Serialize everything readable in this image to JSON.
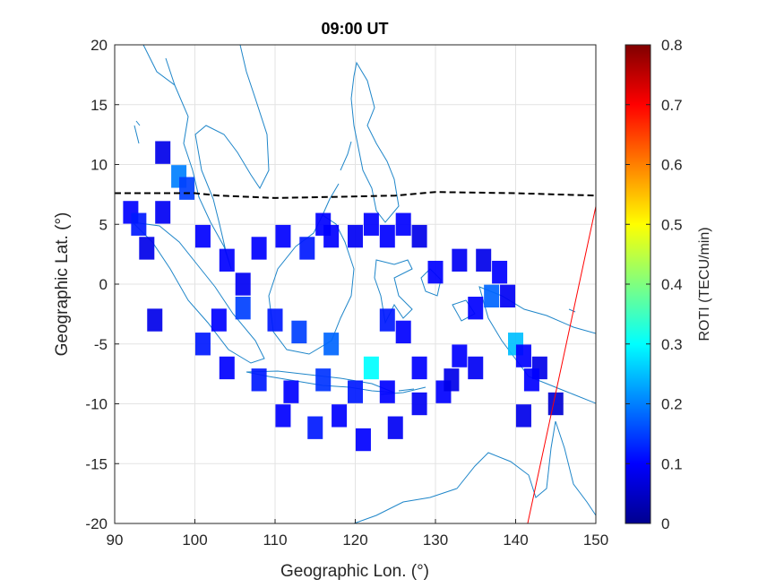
{
  "chart_data": {
    "type": "heatmap",
    "title": "09:00 UT",
    "xlabel": "Geographic Lon. (°)",
    "ylabel": "Geographic Lat. (°)",
    "xlim": [
      90,
      150
    ],
    "ylim": [
      -20,
      20
    ],
    "xticks": [
      "90",
      "100",
      "110",
      "120",
      "130",
      "140",
      "150"
    ],
    "yticks": [
      "20",
      "15",
      "10",
      "5",
      "0",
      "-5",
      "-10",
      "-15",
      "-20"
    ],
    "grid": true,
    "colorbar": {
      "label": "ROTI (TECU/min)",
      "range": [
        0,
        0.8
      ],
      "ticks": [
        "0.8",
        "0.7",
        "0.6",
        "0.5",
        "0.4",
        "0.3",
        "0.2",
        "0.1",
        "0"
      ],
      "colormap": "jet"
    },
    "cells_approx": [
      {
        "lon": 96,
        "lat": 11,
        "roti": 0.08
      },
      {
        "lon": 98,
        "lat": 9,
        "roti": 0.2
      },
      {
        "lon": 99,
        "lat": 8,
        "roti": 0.15
      },
      {
        "lon": 92,
        "lat": 6,
        "roti": 0.1
      },
      {
        "lon": 93,
        "lat": 5,
        "roti": 0.12
      },
      {
        "lon": 94,
        "lat": 3,
        "roti": 0.08
      },
      {
        "lon": 96,
        "lat": 6,
        "roti": 0.09
      },
      {
        "lon": 101,
        "lat": 4,
        "roti": 0.1
      },
      {
        "lon": 104,
        "lat": 2,
        "roti": 0.1
      },
      {
        "lon": 106,
        "lat": 0,
        "roti": 0.09
      },
      {
        "lon": 108,
        "lat": 3,
        "roti": 0.1
      },
      {
        "lon": 111,
        "lat": 4,
        "roti": 0.1
      },
      {
        "lon": 114,
        "lat": 3,
        "roti": 0.12
      },
      {
        "lon": 116,
        "lat": 5,
        "roti": 0.1
      },
      {
        "lon": 117,
        "lat": 4,
        "roti": 0.1
      },
      {
        "lon": 120,
        "lat": 4,
        "roti": 0.09
      },
      {
        "lon": 122,
        "lat": 5,
        "roti": 0.1
      },
      {
        "lon": 124,
        "lat": 4,
        "roti": 0.1
      },
      {
        "lon": 126,
        "lat": 5,
        "roti": 0.1
      },
      {
        "lon": 128,
        "lat": 4,
        "roti": 0.08
      },
      {
        "lon": 130,
        "lat": 1,
        "roti": 0.1
      },
      {
        "lon": 133,
        "lat": 2,
        "roti": 0.09
      },
      {
        "lon": 136,
        "lat": 2,
        "roti": 0.08
      },
      {
        "lon": 138,
        "lat": 1,
        "roti": 0.1
      },
      {
        "lon": 139,
        "lat": -1,
        "roti": 0.09
      },
      {
        "lon": 137,
        "lat": -1,
        "roti": 0.18
      },
      {
        "lon": 135,
        "lat": -2,
        "roti": 0.1
      },
      {
        "lon": 140,
        "lat": -5,
        "roti": 0.25
      },
      {
        "lon": 141,
        "lat": -6,
        "roti": 0.1
      },
      {
        "lon": 143,
        "lat": -7,
        "roti": 0.08
      },
      {
        "lon": 142,
        "lat": -8,
        "roti": 0.1
      },
      {
        "lon": 145,
        "lat": -10,
        "roti": 0.06
      },
      {
        "lon": 141,
        "lat": -11,
        "roti": 0.08
      },
      {
        "lon": 133,
        "lat": -6,
        "roti": 0.1
      },
      {
        "lon": 135,
        "lat": -7,
        "roti": 0.09
      },
      {
        "lon": 131,
        "lat": -9,
        "roti": 0.1
      },
      {
        "lon": 132,
        "lat": -8,
        "roti": 0.08
      },
      {
        "lon": 128,
        "lat": -7,
        "roti": 0.1
      },
      {
        "lon": 126,
        "lat": -4,
        "roti": 0.1
      },
      {
        "lon": 124,
        "lat": -3,
        "roti": 0.12
      },
      {
        "lon": 122,
        "lat": -7,
        "roti": 0.3
      },
      {
        "lon": 117,
        "lat": -5,
        "roti": 0.18
      },
      {
        "lon": 113,
        "lat": -4,
        "roti": 0.15
      },
      {
        "lon": 110,
        "lat": -3,
        "roti": 0.12
      },
      {
        "lon": 106,
        "lat": -2,
        "roti": 0.15
      },
      {
        "lon": 103,
        "lat": -3,
        "roti": 0.1
      },
      {
        "lon": 101,
        "lat": -5,
        "roti": 0.12
      },
      {
        "lon": 104,
        "lat": -7,
        "roti": 0.1
      },
      {
        "lon": 108,
        "lat": -8,
        "roti": 0.12
      },
      {
        "lon": 112,
        "lat": -9,
        "roti": 0.1
      },
      {
        "lon": 116,
        "lat": -8,
        "roti": 0.14
      },
      {
        "lon": 120,
        "lat": -9,
        "roti": 0.12
      },
      {
        "lon": 124,
        "lat": -9,
        "roti": 0.1
      },
      {
        "lon": 128,
        "lat": -10,
        "roti": 0.09
      },
      {
        "lon": 111,
        "lat": -11,
        "roti": 0.1
      },
      {
        "lon": 115,
        "lat": -12,
        "roti": 0.12
      },
      {
        "lon": 118,
        "lat": -11,
        "roti": 0.1
      },
      {
        "lon": 121,
        "lat": -13,
        "roti": 0.1
      },
      {
        "lon": 125,
        "lat": -12,
        "roti": 0.09
      },
      {
        "lon": 95,
        "lat": -3,
        "roti": 0.08
      }
    ],
    "equator_line": {
      "style": "dashed",
      "points": [
        [
          90,
          7.6
        ],
        [
          100,
          7.6
        ],
        [
          103,
          7.4
        ],
        [
          110,
          7.2
        ],
        [
          118,
          7.3
        ],
        [
          125,
          7.4
        ],
        [
          130,
          7.7
        ],
        [
          140,
          7.6
        ],
        [
          150,
          7.4
        ]
      ]
    },
    "red_line": {
      "points": [
        [
          141.5,
          -20
        ],
        [
          150,
          6.5
        ]
      ]
    }
  }
}
